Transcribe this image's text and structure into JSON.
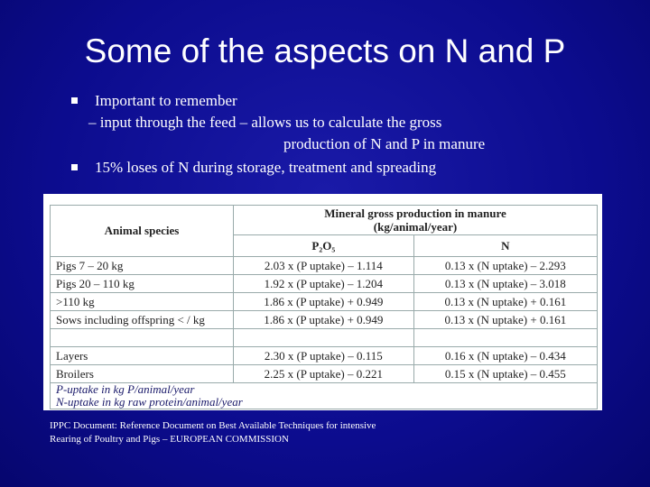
{
  "title": "Some of the aspects on N and P",
  "bullets": [
    {
      "lines": [
        "Important to remember",
        "– input through the feed – allows us to calculate the gross",
        "production of N and P in manure"
      ]
    },
    {
      "lines": [
        "15% loses of N during storage, treatment and spreading"
      ]
    }
  ],
  "table": {
    "species_header": "Animal species",
    "group_header": [
      "Mineral gross production in manure",
      "(kg/animal/year)"
    ],
    "columns": [
      "P₂O₅",
      "N"
    ],
    "rows": [
      [
        "Pigs 7 – 20 kg",
        "2.03 x (P uptake) – 1.114",
        "0.13 x (N uptake) – 2.293"
      ],
      [
        "Pigs 20 – 110 kg",
        "1.92 x (P uptake) – 1.204",
        "0.13 x (N uptake) – 3.018"
      ],
      [
        ">110 kg",
        "1.86 x (P uptake) + 0.949",
        "0.13 x (N uptake) + 0.161"
      ],
      [
        "Sows including offspring < / kg",
        "1.86 x (P uptake) + 0.949",
        "0.13 x (N uptake) + 0.161"
      ],
      [
        "Layers",
        "2.30 x (P uptake) – 0.115",
        "0.16 x (N uptake) – 0.434"
      ],
      [
        "Broilers",
        "2.25 x (P uptake) – 0.221",
        "0.15 x (N uptake) – 0.455"
      ]
    ],
    "footnotes": [
      "P-uptake in kg P/animal/year",
      "N-uptake in kg raw protein/animal/year"
    ]
  },
  "source": [
    "IPPC Document: Reference Document on Best Available Techniques for intensive",
    "Rearing of Poultry and Pigs – EUROPEAN COMMISSION"
  ]
}
